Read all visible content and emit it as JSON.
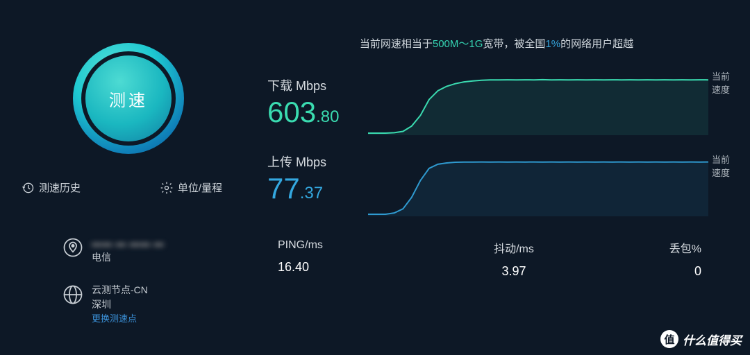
{
  "colors": {
    "bg": "#0d1826",
    "download": "#3adbb0",
    "upload": "#34a8e0",
    "text_muted": "#aeb6bd"
  },
  "gauge": {
    "label": "测速"
  },
  "nav": {
    "history": "测速历史",
    "units": "单位/量程"
  },
  "location": {
    "ip_masked": "▬▬.▬.▬▬.▬",
    "isp": "电信"
  },
  "node": {
    "name": "云测节点-CN",
    "city": "深圳",
    "change_link": "更换测速点"
  },
  "summary": {
    "prefix": "当前网速相当于",
    "tier": "500M～1G",
    "mid": "宽带，被全国",
    "pct": "1%",
    "suffix": "的网络用户超越"
  },
  "download": {
    "title": "下载 Mbps",
    "int": "603",
    "frac": ".80",
    "chart_label": "当前速度",
    "chart": {
      "type": "line",
      "stroke": "#3adbb0",
      "stroke_width": 2,
      "ylim": [
        0,
        650
      ],
      "points": [
        0,
        0,
        0,
        5,
        20,
        80,
        200,
        380,
        480,
        530,
        560,
        580,
        590,
        598,
        602,
        603,
        604,
        603,
        604,
        603,
        605,
        603,
        604,
        603,
        604,
        603,
        604,
        603,
        604,
        603,
        604,
        603,
        604,
        603,
        604,
        603,
        604,
        603,
        604,
        603
      ]
    }
  },
  "upload": {
    "title": "上传 Mbps",
    "int": "77",
    "frac": ".37",
    "chart_label": "当前速度",
    "chart": {
      "type": "line",
      "stroke": "#2f9ad0",
      "stroke_width": 2,
      "ylim": [
        0,
        85
      ],
      "points": [
        0,
        0,
        0,
        2,
        8,
        25,
        50,
        68,
        74,
        76,
        77,
        77.2,
        77.3,
        77.4,
        77.3,
        77.4,
        77.3,
        77.4,
        77.3,
        77.4,
        77.3,
        77.4,
        77.3,
        77.4,
        77.3,
        77.4,
        77.3,
        77.4,
        77.3,
        77.4,
        77.3,
        77.4,
        77.3,
        77.4,
        77.3,
        77.4,
        77.3,
        77.4,
        77.3,
        77.4
      ]
    }
  },
  "stats": {
    "ping": {
      "title": "PING/ms",
      "value": "16.40"
    },
    "jitter": {
      "title": "抖动/ms",
      "value": "3.97"
    },
    "loss": {
      "title": "丢包%",
      "value": "0"
    }
  },
  "watermark": {
    "badge": "值",
    "text": "什么值得买"
  }
}
